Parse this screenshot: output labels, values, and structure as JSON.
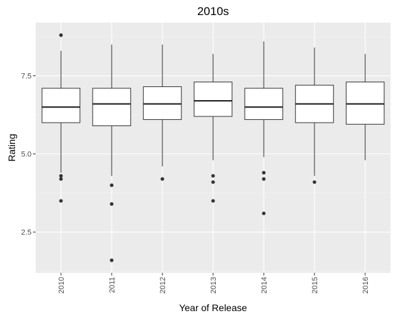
{
  "chart_data": {
    "type": "boxplot",
    "title": "2010s",
    "xlabel": "Year of Release",
    "ylabel": "Rating",
    "ylim": [
      1.2,
      9.2
    ],
    "yticks": [
      2.5,
      5.0,
      7.5
    ],
    "ytick_labels": [
      "2.5",
      "5.0",
      "7.5"
    ],
    "grid": true,
    "categories": [
      "2010",
      "2011",
      "2012",
      "2013",
      "2014",
      "2015",
      "2016"
    ],
    "boxes": [
      {
        "category": "2010",
        "whisker_low": 4.4,
        "q1": 6.0,
        "median": 6.5,
        "q3": 7.1,
        "whisker_high": 8.3,
        "outliers": [
          8.8,
          4.3,
          4.2,
          3.5
        ]
      },
      {
        "category": "2011",
        "whisker_low": 4.3,
        "q1": 5.9,
        "median": 6.6,
        "q3": 7.1,
        "whisker_high": 8.5,
        "outliers": [
          4.0,
          3.4,
          1.6
        ]
      },
      {
        "category": "2012",
        "whisker_low": 4.6,
        "q1": 6.1,
        "median": 6.6,
        "q3": 7.15,
        "whisker_high": 8.5,
        "outliers": [
          4.2
        ]
      },
      {
        "category": "2013",
        "whisker_low": 4.8,
        "q1": 6.2,
        "median": 6.7,
        "q3": 7.3,
        "whisker_high": 8.2,
        "outliers": [
          4.3,
          4.1,
          3.5
        ]
      },
      {
        "category": "2014",
        "whisker_low": 4.9,
        "q1": 6.1,
        "median": 6.5,
        "q3": 7.1,
        "whisker_high": 8.6,
        "outliers": [
          4.4,
          4.2,
          3.1
        ]
      },
      {
        "category": "2015",
        "whisker_low": 4.3,
        "q1": 6.0,
        "median": 6.6,
        "q3": 7.2,
        "whisker_high": 8.4,
        "outliers": [
          4.1
        ]
      },
      {
        "category": "2016",
        "whisker_low": 4.8,
        "q1": 5.95,
        "median": 6.6,
        "q3": 7.3,
        "whisker_high": 8.2,
        "outliers": []
      }
    ],
    "colors": {
      "panel_background": "#ebebeb",
      "box_fill": "#ffffff",
      "box_stroke": "#333333",
      "point": "#333333"
    }
  }
}
